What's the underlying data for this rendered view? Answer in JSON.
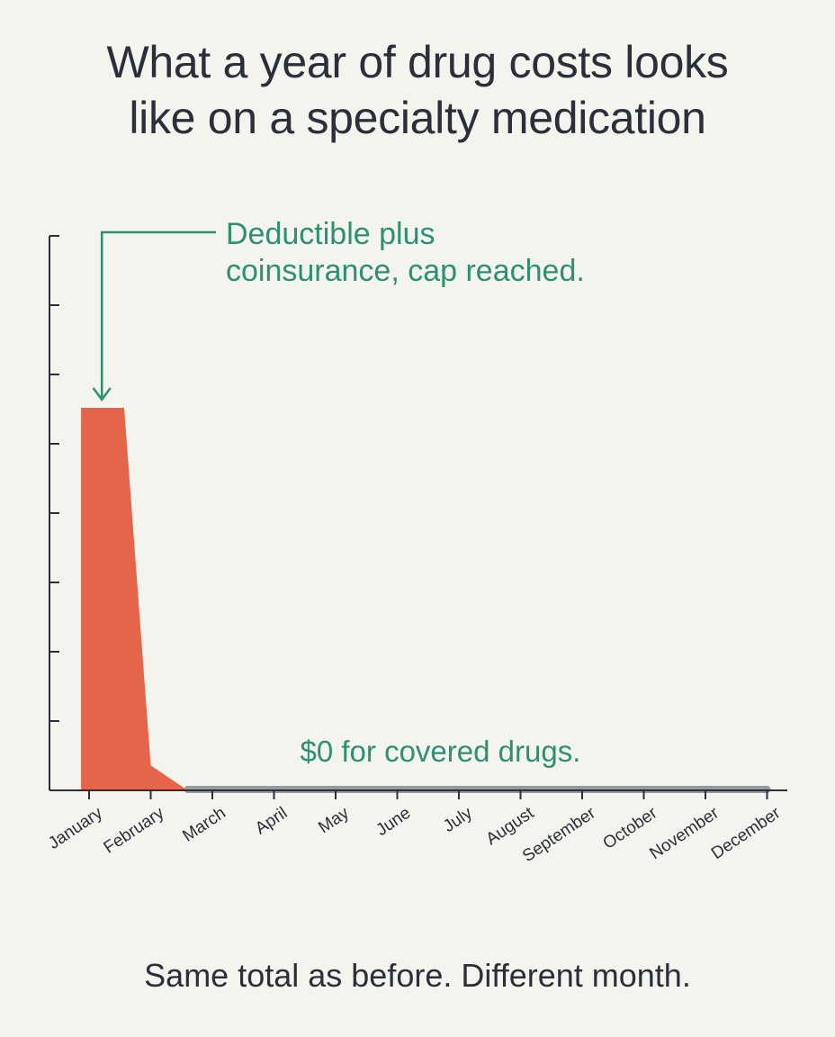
{
  "title_lines": [
    "What a year of drug costs looks",
    "like on a specialty medication"
  ],
  "footer": "Same total as before. Different month.",
  "colors": {
    "background": "#f3f4ee",
    "area_fill": "#e4654a",
    "flat_line": "#979a9c",
    "annotation": "#2f8f73",
    "axis": "#2b2f3a"
  },
  "chart_data": {
    "type": "area",
    "title": "What a year of drug costs looks like on a specialty medication",
    "xlabel": "",
    "ylabel": "",
    "categories": [
      "January",
      "February",
      "March",
      "April",
      "May",
      "June",
      "July",
      "August",
      "September",
      "October",
      "November",
      "December"
    ],
    "ylim": [
      0,
      100
    ],
    "y_tick_count": 8,
    "grid": false,
    "legend": "none",
    "series": [
      {
        "x": [
          -0.13,
          0.57,
          1.0,
          1.6
        ],
        "y": [
          69,
          69,
          4.5,
          0
        ]
      },
      {
        "x": [
          1.6,
          11.0
        ],
        "y": [
          0,
          0
        ]
      }
    ],
    "annotations": [
      {
        "lines": [
          "Deductible plus",
          "coinsurance, cap reached."
        ],
        "target_x": 0.2,
        "target_y": 69,
        "arrow": true
      },
      {
        "lines": [
          "$0 for covered drugs."
        ],
        "target_x": 5.7,
        "target_y": 0,
        "arrow": false
      }
    ]
  }
}
